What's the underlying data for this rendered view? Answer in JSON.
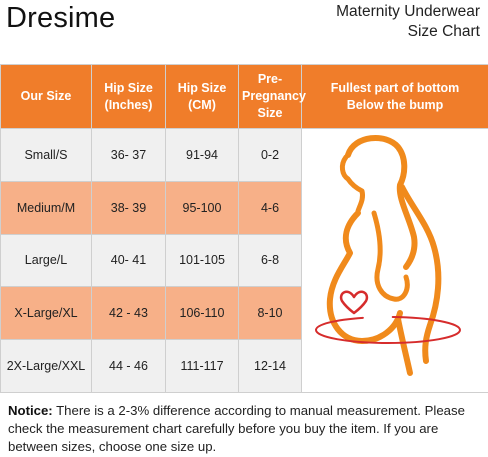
{
  "brand": "Dresime",
  "title": {
    "line1": "Maternity Underwear",
    "line2": "Size Chart"
  },
  "table": {
    "headers": {
      "our_size": "Our Size",
      "hip_in": [
        "Hip Size",
        "(Inches)"
      ],
      "hip_cm": [
        "Hip Size",
        "(CM)"
      ],
      "pre_preg": [
        "Pre-",
        "Pregnancy",
        "Size"
      ],
      "fullest": [
        "Fullest part of bottom",
        "Below the bump"
      ]
    },
    "rows": [
      {
        "size": "Small/S",
        "inches": "36- 37",
        "cm": "91-94",
        "pre": "0-2"
      },
      {
        "size": "Medium/M",
        "inches": "38- 39",
        "cm": "95-100",
        "pre": "4-6"
      },
      {
        "size": "Large/L",
        "inches": "40- 41",
        "cm": "101-105",
        "pre": "6-8"
      },
      {
        "size": "X-Large/XL",
        "inches": "42 - 43",
        "cm": "106-110",
        "pre": "8-10"
      },
      {
        "size": "2X-Large/XXL",
        "inches": "44 - 46",
        "cm": "111-117",
        "pre": "12-14"
      }
    ]
  },
  "colors": {
    "header": "#f07d2a",
    "alt_row": "#f7b088",
    "plain_row": "#f0f0f0",
    "figure_outline": "#f08a1c",
    "heart": "#d62c2c"
  },
  "notice": {
    "label": "Notice:",
    "text": " There is a 2-3% difference according to manual measurement. Please check the measurement chart carefully before you buy the item. If you are between sizes, choose one size up."
  }
}
